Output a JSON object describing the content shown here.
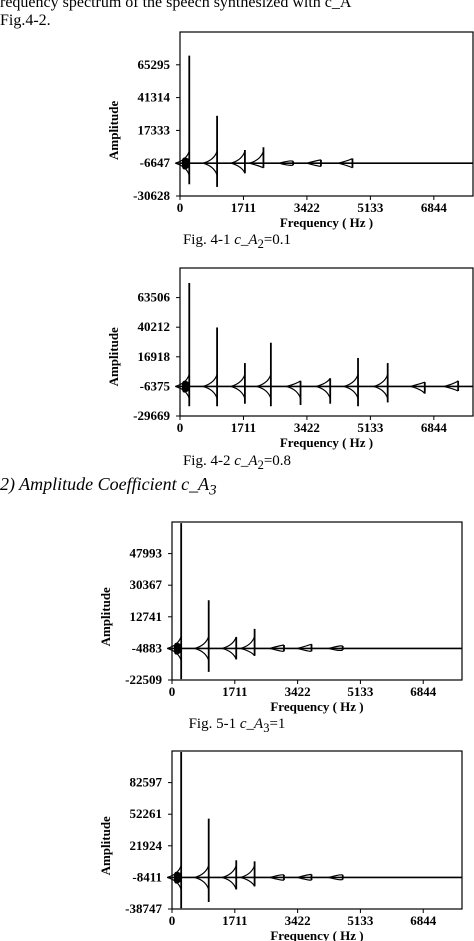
{
  "page": {
    "top_text_line1": "requency spectrum of the speech synthesized with c_A",
    "top_text_line2": "Fig.4-2.",
    "section_heading": "2) Amplitude Coefficient c_A",
    "section_heading_sub": "3",
    "captions": [
      {
        "prefix": "Fig. 4-1  ",
        "var": "c_A",
        "sub": "2",
        "suffix": "=0.1"
      },
      {
        "prefix": "Fig. 4-2  ",
        "var": "c_A",
        "sub": "2",
        "suffix": "=0.8"
      },
      {
        "prefix": "Fig. 5-1  ",
        "var": "c_A",
        "sub": "3",
        "suffix": "=1"
      }
    ]
  },
  "chart_data": [
    {
      "type": "line",
      "xlabel": "Frequency ( Hz )",
      "ylabel": "Amplitude",
      "x_ticks": [
        "0",
        "1711",
        "3422",
        "5133",
        "6844"
      ],
      "y_ticks": [
        "65295",
        "41314",
        "17333",
        "-6647",
        "-30628"
      ],
      "xlim": [
        0,
        7900
      ],
      "ylim": [
        -30628,
        89276
      ],
      "baseline": -6647,
      "peaks": [
        {
          "x": 250,
          "max": 72000,
          "min": -22000
        },
        {
          "x": 1000,
          "max": 28000,
          "min": -24000
        },
        {
          "x": 1750,
          "max": 3000,
          "min": -14000
        },
        {
          "x": 2250,
          "max": 5000,
          "min": -10000
        },
        {
          "x": 3050,
          "max": -5200,
          "min": -8000
        },
        {
          "x": 3800,
          "max": -4200,
          "min": -9000
        },
        {
          "x": 4650,
          "max": -3200,
          "min": -10000
        }
      ]
    },
    {
      "type": "line",
      "xlabel": "Frequency ( Hz )",
      "ylabel": "Amplitude",
      "x_ticks": [
        "0",
        "1711",
        "3422",
        "5133",
        "6844"
      ],
      "y_ticks": [
        "63506",
        "40212",
        "16918",
        "-6375",
        "-29669"
      ],
      "xlim": [
        0,
        7900
      ],
      "ylim": [
        -29669,
        86800
      ],
      "baseline": -6375,
      "peaks": [
        {
          "x": 250,
          "max": 75000,
          "min": -22000
        },
        {
          "x": 1000,
          "max": 40000,
          "min": -22000
        },
        {
          "x": 1750,
          "max": 12000,
          "min": -20000
        },
        {
          "x": 2450,
          "max": 28000,
          "min": -22000
        },
        {
          "x": 3250,
          "max": -2000,
          "min": -21000
        },
        {
          "x": 4050,
          "max": 0,
          "min": -20000
        },
        {
          "x": 4800,
          "max": 16000,
          "min": -22000
        },
        {
          "x": 5600,
          "max": 12000,
          "min": -19000
        },
        {
          "x": 6600,
          "max": -3000,
          "min": -12000
        },
        {
          "x": 7500,
          "max": -2000,
          "min": -10000
        }
      ]
    },
    {
      "type": "line",
      "xlabel": "Frequency ( Hz )",
      "ylabel": "Amplitude",
      "x_ticks": [
        "0",
        "1711",
        "3422",
        "5133",
        "6844"
      ],
      "y_ticks": [
        "47993",
        "30367",
        "12741",
        "-4883",
        "-22509"
      ],
      "xlim": [
        0,
        7900
      ],
      "ylim": [
        -22509,
        65619
      ],
      "baseline": -4883,
      "peaks": [
        {
          "x": 250,
          "max": 65000,
          "min": -22000
        },
        {
          "x": 1000,
          "max": 22000,
          "min": -18000
        },
        {
          "x": 1750,
          "max": 1500,
          "min": -11000
        },
        {
          "x": 2250,
          "max": 6000,
          "min": -9000
        },
        {
          "x": 3050,
          "max": -3000,
          "min": -6500
        },
        {
          "x": 3800,
          "max": -2500,
          "min": -6500
        },
        {
          "x": 4650,
          "max": -3500,
          "min": -5800
        }
      ]
    },
    {
      "type": "line",
      "xlabel": "Frequency ( Hz )",
      "ylabel": "Amplitude",
      "x_ticks": [
        "0",
        "1711",
        "3422",
        "5133",
        "6844"
      ],
      "y_ticks": [
        "82597",
        "52261",
        "21924",
        "-8411",
        "-38747"
      ],
      "xlim": [
        0,
        7900
      ],
      "ylim": [
        -38747,
        112934
      ],
      "baseline": -8411,
      "peaks": [
        {
          "x": 250,
          "max": 112000,
          "min": -38000
        },
        {
          "x": 1000,
          "max": 48000,
          "min": -32000
        },
        {
          "x": 1750,
          "max": 8000,
          "min": -20000
        },
        {
          "x": 2250,
          "max": 7000,
          "min": -17000
        },
        {
          "x": 3050,
          "max": -6000,
          "min": -11000
        },
        {
          "x": 3800,
          "max": -5500,
          "min": -11000
        },
        {
          "x": 4650,
          "max": -6000,
          "min": -10500
        }
      ]
    }
  ]
}
